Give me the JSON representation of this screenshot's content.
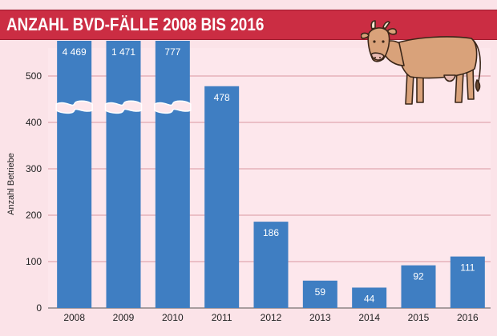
{
  "chart_data": {
    "type": "bar",
    "title": "ANZAHL BVD-FÄLLE 2008 BIS 2016",
    "ylabel": "Anzahl Betriebe",
    "xlabel": "",
    "categories": [
      "2008",
      "2009",
      "2010",
      "2011",
      "2012",
      "2013",
      "2014",
      "2015",
      "2016"
    ],
    "values": [
      4469,
      1471,
      777,
      478,
      186,
      59,
      44,
      92,
      111
    ],
    "value_labels": [
      "4 469",
      "1 471",
      "777",
      "478",
      "186",
      "59",
      "44",
      "92",
      "111"
    ],
    "axis_break": true,
    "ylim": [
      0,
      540
    ],
    "yticks": [
      "0",
      "100",
      "200",
      "300",
      "400",
      "500"
    ],
    "grid": true,
    "colors": {
      "bar": "#3f7ec2",
      "title_bar": "#cb2d43",
      "background": "#fbe3e8",
      "grid": "#d9979f"
    }
  },
  "illustration": {
    "icon": "cow-icon"
  }
}
